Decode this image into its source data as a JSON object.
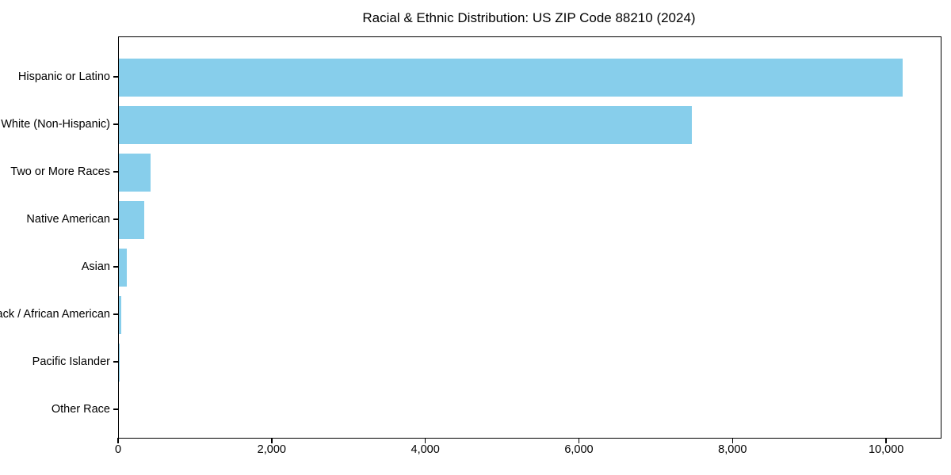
{
  "figure": {
    "background_color": "#ffffff"
  },
  "chart_data": {
    "type": "bar",
    "orientation": "horizontal",
    "title": "Racial & Ethnic Distribution: US ZIP Code 88210 (2024)",
    "categories": [
      "Hispanic or Latino",
      "White (Non-Hispanic)",
      "Two or More Races",
      "Native American",
      "Asian",
      "Black / African American",
      "Pacific Islander",
      "Other Race"
    ],
    "values": [
      10200,
      7460,
      410,
      330,
      100,
      30,
      5,
      0
    ],
    "bar_color": "#87CEEB",
    "axis_color": "#000000",
    "text_color": "#000000",
    "xlabel": "",
    "ylabel": "",
    "xlim": [
      0,
      10700
    ],
    "x_ticks": [
      0,
      2000,
      4000,
      6000,
      8000,
      10000
    ],
    "x_tick_labels": [
      "0",
      "2,000",
      "4,000",
      "6,000",
      "8,000",
      "10,000"
    ],
    "grid": false,
    "legend": "none"
  }
}
